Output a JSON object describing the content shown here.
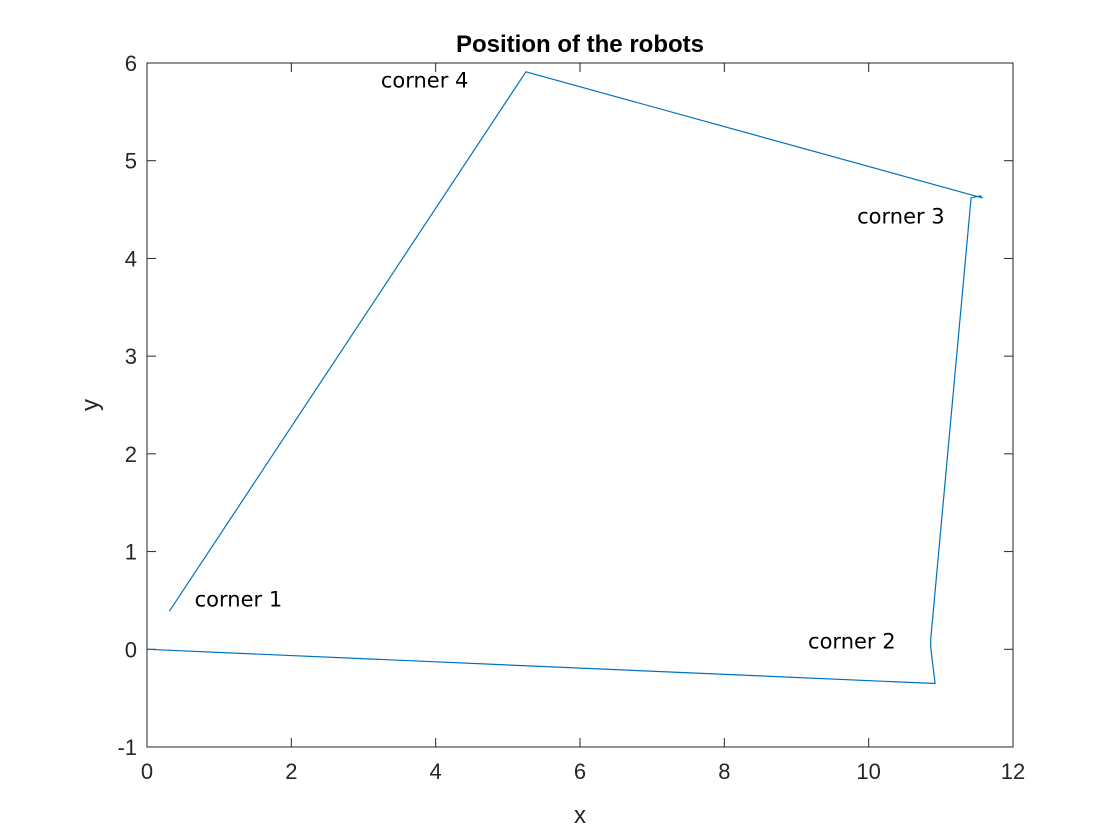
{
  "chart_data": {
    "type": "line",
    "title": "Position of the robots",
    "xlabel": "x",
    "ylabel": "y",
    "xlim": [
      0,
      12
    ],
    "ylim": [
      -1,
      6
    ],
    "xticks": [
      0,
      2,
      4,
      6,
      8,
      10,
      12
    ],
    "yticks": [
      -1,
      0,
      1,
      2,
      3,
      4,
      5,
      6
    ],
    "xtick_labels": [
      "0",
      "2",
      "4",
      "6",
      "8",
      "10",
      "12"
    ],
    "ytick_labels": [
      "-1",
      "0",
      "1",
      "2",
      "3",
      "4",
      "5",
      "6"
    ],
    "grid": false,
    "box": true,
    "series": [
      {
        "color": "#0072bd",
        "x": [
          0.0,
          10.92,
          10.86,
          10.86,
          11.42,
          11.55,
          11.57,
          5.25,
          0.31
        ],
        "y": [
          0.0,
          -0.35,
          0.02,
          0.1,
          4.62,
          4.64,
          4.62,
          5.91,
          0.39
        ]
      }
    ],
    "annotations": [
      {
        "text": "corner 1",
        "x": 0.66,
        "y": 0.44
      },
      {
        "text": "corner 2",
        "x": 9.16,
        "y": 0.01
      },
      {
        "text": "corner 3",
        "x": 9.84,
        "y": 4.36
      },
      {
        "text": "corner 4",
        "x": 3.24,
        "y": 5.75
      }
    ]
  }
}
